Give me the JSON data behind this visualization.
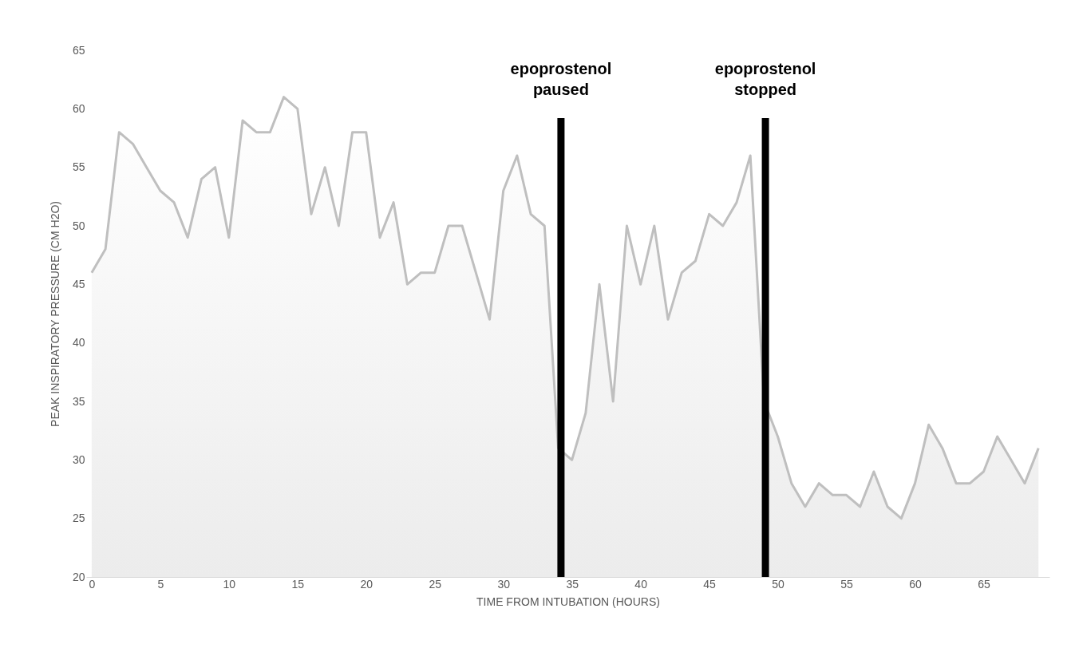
{
  "chart_data": {
    "type": "area",
    "xlabel": "TIME FROM INTUBATION (HOURS)",
    "ylabel": "PEAK INSPIRATORY PRESSURE (CM H2O)",
    "x": [
      0,
      1,
      2,
      3,
      4,
      5,
      6,
      7,
      8,
      9,
      10,
      11,
      12,
      13,
      14,
      15,
      16,
      17,
      18,
      19,
      20,
      21,
      22,
      23,
      24,
      25,
      26,
      27,
      28,
      29,
      30,
      31,
      32,
      33,
      34,
      35,
      36,
      37,
      38,
      39,
      40,
      41,
      42,
      43,
      44,
      45,
      46,
      47,
      48,
      49,
      50,
      51,
      52,
      53,
      54,
      55,
      56,
      57,
      58,
      59,
      60,
      61,
      62,
      63,
      64,
      65,
      66,
      67,
      68,
      69
    ],
    "series": [
      {
        "color": "#bfbfbf",
        "values": [
          46,
          48,
          58,
          57,
          55,
          53,
          52,
          49,
          54,
          55,
          49,
          59,
          58,
          58,
          61,
          60,
          51,
          55,
          50,
          58,
          58,
          49,
          52,
          45,
          46,
          46,
          50,
          50,
          46,
          42,
          53,
          56,
          51,
          50,
          31,
          30,
          34,
          45,
          35,
          50,
          45,
          50,
          42,
          46,
          47,
          51,
          50,
          52,
          56,
          35,
          32,
          28,
          26,
          28,
          27,
          27,
          26,
          29,
          26,
          25,
          28,
          33,
          31,
          28,
          28,
          29,
          32,
          30,
          28,
          31
        ]
      }
    ],
    "xlim": [
      -0.4,
      69.8
    ],
    "xticks": [
      0,
      5,
      10,
      15,
      20,
      25,
      30,
      35,
      40,
      45,
      50,
      55,
      60,
      65
    ],
    "ylim": [
      20,
      65
    ],
    "yticks": [
      20,
      25,
      30,
      35,
      40,
      45,
      50,
      55,
      60,
      65
    ],
    "grid": false,
    "marker": "none",
    "ref_lines": [
      {
        "axis": "x",
        "value": 34.2,
        "label": "epoprostenol paused",
        "color": "#000000"
      },
      {
        "axis": "x",
        "value": 49.1,
        "label": "epoprostenol stopped",
        "color": "#000000"
      }
    ]
  }
}
